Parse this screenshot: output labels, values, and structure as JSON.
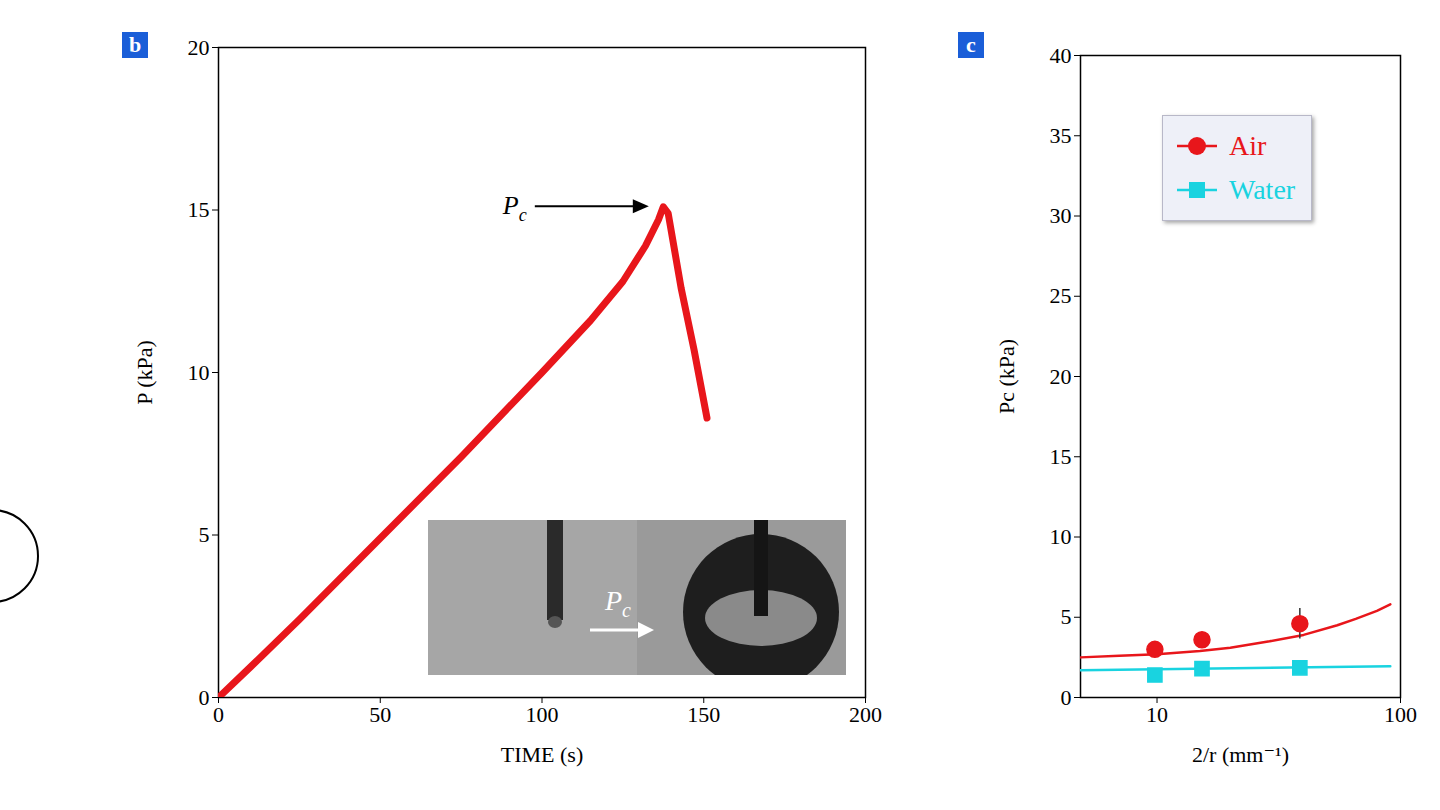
{
  "chart_data": [
    {
      "type": "line",
      "panel_label": "b",
      "x_label": "TIME (s)",
      "y_label": "P (kPa)",
      "x": [
        0,
        10,
        25,
        50,
        75,
        100,
        115,
        125,
        132,
        136,
        137.5,
        139,
        143,
        147,
        151
      ],
      "values": [
        0,
        0.95,
        2.4,
        4.9,
        7.4,
        10.0,
        11.6,
        12.8,
        13.9,
        14.7,
        15.1,
        14.9,
        12.6,
        10.7,
        8.6
      ],
      "color": "#e8161b",
      "xlim": [
        0,
        200
      ],
      "xticks": [
        0,
        50,
        100,
        150,
        200
      ],
      "ylim": [
        0,
        20
      ],
      "yticks": [
        0,
        5,
        10,
        15,
        20
      ],
      "annotations": [
        {
          "text": "Pc",
          "x": 137.5,
          "y": 15.1
        }
      ],
      "inset": {
        "text": "Pc"
      }
    },
    {
      "type": "scatter",
      "panel_label": "c",
      "x_label": "2/r (mm⁻¹)",
      "y_label": "Pc (kPa)",
      "log": "x",
      "legend": "upper left",
      "xlim": [
        4.85,
        100
      ],
      "xticks": [
        10,
        100
      ],
      "ylim": [
        0,
        40
      ],
      "yticks": [
        0,
        5,
        10,
        15,
        20,
        25,
        30,
        35,
        40
      ],
      "series": [
        {
          "name": "Air",
          "color": "#e8161b",
          "marker": "circle",
          "x": [
            9.8,
            15.3,
            38.6
          ],
          "values": [
            3.0,
            3.6,
            4.6
          ],
          "errors": [
            0.35,
            0.45,
            0.95
          ],
          "fit": {
            "x": [
              4.85,
              7,
              10,
              15,
              20,
              29,
              40,
              55,
              65.5,
              80,
              90.8
            ],
            "values": [
              2.5,
              2.6,
              2.7,
              2.9,
              3.1,
              3.5,
              3.9,
              4.5,
              4.9,
              5.4,
              5.8
            ]
          }
        },
        {
          "name": "Water",
          "color": "#19d3e0",
          "marker": "square",
          "x": [
            9.8,
            15.3,
            38.6
          ],
          "values": [
            1.4,
            1.8,
            1.85
          ],
          "errors": [
            0.35,
            0.45,
            0.2
          ],
          "fit": {
            "x": [
              4.85,
              90.8
            ],
            "values": [
              1.7,
              1.95
            ]
          }
        }
      ]
    }
  ]
}
